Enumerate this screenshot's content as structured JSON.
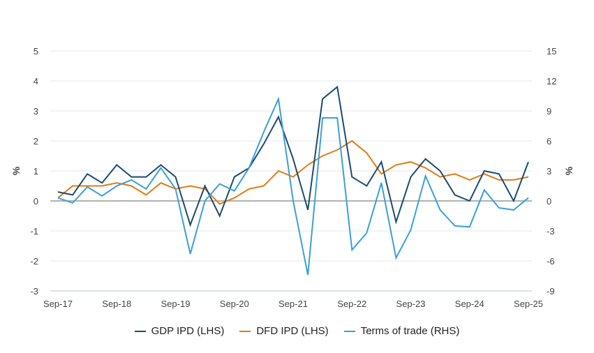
{
  "chart_data": {
    "type": "line",
    "title": "",
    "ylabel_left": "%",
    "ylabel_right": "%",
    "ylim_left": [
      -3,
      5
    ],
    "ylim_right": [
      -9,
      15
    ],
    "yticks_left": [
      5,
      4,
      3,
      2,
      1,
      0,
      -1,
      -2,
      -3
    ],
    "yticks_right": [
      15,
      12,
      9,
      6,
      3,
      0,
      -3,
      -6,
      -9
    ],
    "x": [
      "Sep-17",
      "Dec-17",
      "Mar-18",
      "Jun-18",
      "Sep-18",
      "Dec-18",
      "Mar-19",
      "Jun-19",
      "Sep-19",
      "Dec-19",
      "Mar-20",
      "Jun-20",
      "Sep-20",
      "Dec-20",
      "Mar-21",
      "Jun-21",
      "Sep-21",
      "Dec-21",
      "Mar-22",
      "Jun-22",
      "Sep-22",
      "Dec-22",
      "Mar-23",
      "Jun-23",
      "Sep-23",
      "Dec-23",
      "Mar-24",
      "Jun-24",
      "Sep-24",
      "Dec-24",
      "Mar-25",
      "Jun-25",
      "Sep-25"
    ],
    "xtick_labels": [
      "Sep-17",
      "Sep-18",
      "Sep-19",
      "Sep-20",
      "Sep-21",
      "Sep-22",
      "Sep-23",
      "Sep-24",
      "Sep-25"
    ],
    "grid": true,
    "legend_placement": "bottom",
    "series": [
      {
        "name": "GDP IPD (LHS)",
        "axis": "left",
        "color": "#1b4a70",
        "values": [
          0.3,
          0.2,
          0.9,
          0.6,
          1.2,
          0.8,
          0.8,
          1.2,
          0.8,
          -0.8,
          0.5,
          -0.5,
          0.8,
          1.1,
          1.9,
          2.8,
          1.4,
          -0.3,
          3.4,
          3.8,
          0.8,
          0.5,
          1.3,
          -0.7,
          0.8,
          1.4,
          1.0,
          0.2,
          0.0,
          1.0,
          0.9,
          0.0,
          1.3
        ]
      },
      {
        "name": "DFD IPD (LHS)",
        "axis": "left",
        "color": "#e07b12",
        "values": [
          0.1,
          0.5,
          0.5,
          0.5,
          0.6,
          0.5,
          0.2,
          0.6,
          0.4,
          0.5,
          0.4,
          -0.1,
          0.1,
          0.4,
          0.5,
          1.0,
          0.8,
          1.2,
          1.5,
          1.7,
          2.0,
          1.6,
          0.9,
          1.2,
          1.3,
          1.1,
          0.8,
          0.9,
          0.7,
          0.9,
          0.7,
          0.7,
          0.8
        ]
      },
      {
        "name": "Terms of trade (RHS)",
        "axis": "right",
        "color": "#3a9fd8",
        "values": [
          0.3,
          -0.2,
          1.4,
          0.5,
          1.5,
          2.1,
          1.2,
          3.3,
          1.2,
          -5.3,
          0,
          1.7,
          1.0,
          3.3,
          6.9,
          10.2,
          0,
          -7.4,
          8.3,
          8.3,
          -4.9,
          -3.2,
          1.8,
          -5.7,
          -2.9,
          2.5,
          -0.9,
          -2.5,
          -2.6,
          1.1,
          -0.7,
          -0.9,
          0.3
        ]
      }
    ]
  }
}
